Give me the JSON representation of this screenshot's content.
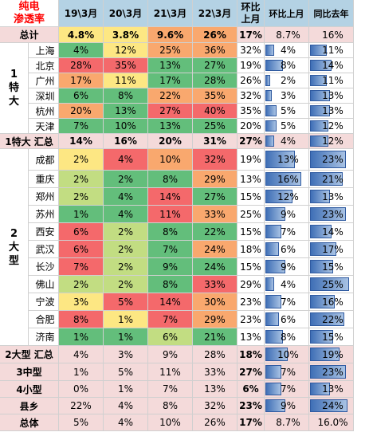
{
  "title_line1": "纯电",
  "title_line2": "渗透率",
  "headers": [
    "19\\3月",
    "20\\3月",
    "21\\3月",
    "22\\3月",
    "环比上月",
    "环比上月",
    "同比去年"
  ],
  "header_short": [
    "19\\3月",
    "20\\3月",
    "21\\3月",
    "22\\3月"
  ],
  "header_mom_top": "环比",
  "header_mom_bottom": "上月",
  "header_mom2": "环比上月",
  "header_yoy": "同比去年",
  "group_tier1": [
    "1",
    "特",
    "大"
  ],
  "group_tier2": [
    "2",
    "大",
    "型"
  ],
  "colors": {
    "red": "#f4696b",
    "orange": "#f9a86e",
    "yellow": "#fde783",
    "lightgreen": "#c2dd82",
    "green": "#63be7b"
  },
  "chart_data": {
    "type": "table",
    "columns": [
      "19\\3月",
      "20\\3月",
      "21\\3月",
      "22\\3月",
      "环比上月",
      "环比上月",
      "同比去年"
    ],
    "rows": [
      {
        "label": "总计",
        "values": [
          "4.8%",
          "3.8%",
          "9.6%",
          "26%",
          "17%",
          "8.7%",
          "16%"
        ],
        "bar_values": [
          null,
          null,
          null,
          null,
          null,
          8.7,
          16
        ]
      },
      {
        "label": "上海",
        "group": "1特大",
        "values": [
          "4%",
          "12%",
          "25%",
          "36%",
          "32%",
          "4%",
          "11%"
        ],
        "bar_values": [
          4,
          12,
          25,
          36,
          32,
          4,
          11
        ]
      },
      {
        "label": "北京",
        "group": "1特大",
        "values": [
          "28%",
          "35%",
          "13%",
          "27%",
          "19%",
          "8%",
          "14%"
        ],
        "bar_values": [
          28,
          35,
          13,
          27,
          19,
          8,
          14
        ]
      },
      {
        "label": "广州",
        "group": "1特大",
        "values": [
          "17%",
          "11%",
          "17%",
          "28%",
          "26%",
          "2%",
          "11%"
        ],
        "bar_values": [
          17,
          11,
          17,
          28,
          26,
          2,
          11
        ]
      },
      {
        "label": "深圳",
        "group": "1特大",
        "values": [
          "6%",
          "8%",
          "22%",
          "35%",
          "32%",
          "3%",
          "13%"
        ],
        "bar_values": [
          6,
          8,
          22,
          35,
          32,
          3,
          13
        ]
      },
      {
        "label": "杭州",
        "group": "1特大",
        "values": [
          "20%",
          "13%",
          "27%",
          "40%",
          "35%",
          "5%",
          "13%"
        ],
        "bar_values": [
          20,
          13,
          27,
          40,
          35,
          5,
          13
        ]
      },
      {
        "label": "天津",
        "group": "1特大",
        "values": [
          "7%",
          "10%",
          "13%",
          "25%",
          "20%",
          "5%",
          "12%"
        ],
        "bar_values": [
          7,
          10,
          13,
          25,
          20,
          5,
          12
        ]
      },
      {
        "label": "1特大 汇总",
        "values": [
          "14%",
          "16%",
          "20%",
          "31%",
          "27%",
          "4%",
          "12%"
        ],
        "bar_values": [
          14,
          16,
          20,
          31,
          27,
          4,
          12
        ]
      },
      {
        "label": "成都",
        "group": "2大型",
        "values": [
          "2%",
          "4%",
          "10%",
          "32%",
          "19%",
          "13%",
          "23%"
        ],
        "bar_values": [
          2,
          4,
          10,
          32,
          19,
          13,
          23
        ]
      },
      {
        "label": "重庆",
        "group": "2大型",
        "values": [
          "2%",
          "2%",
          "8%",
          "29%",
          "13%",
          "16%",
          "21%"
        ],
        "bar_values": [
          2,
          2,
          8,
          29,
          13,
          16,
          21
        ]
      },
      {
        "label": "郑州",
        "group": "2大型",
        "values": [
          "2%",
          "4%",
          "14%",
          "27%",
          "15%",
          "12%",
          "13%"
        ],
        "bar_values": [
          2,
          4,
          14,
          27,
          15,
          12,
          13
        ]
      },
      {
        "label": "苏州",
        "group": "2大型",
        "values": [
          "1%",
          "4%",
          "11%",
          "33%",
          "25%",
          "9%",
          "23%"
        ],
        "bar_values": [
          1,
          4,
          11,
          33,
          25,
          9,
          23
        ]
      },
      {
        "label": "西安",
        "group": "2大型",
        "values": [
          "6%",
          "2%",
          "8%",
          "22%",
          "15%",
          "7%",
          "14%"
        ],
        "bar_values": [
          6,
          2,
          8,
          22,
          15,
          7,
          14
        ]
      },
      {
        "label": "武汉",
        "group": "2大型",
        "values": [
          "6%",
          "2%",
          "7%",
          "24%",
          "18%",
          "6%",
          "17%"
        ],
        "bar_values": [
          6,
          2,
          7,
          24,
          18,
          6,
          17
        ]
      },
      {
        "label": "长沙",
        "group": "2大型",
        "values": [
          "7%",
          "2%",
          "9%",
          "24%",
          "15%",
          "9%",
          "15%"
        ],
        "bar_values": [
          7,
          2,
          9,
          24,
          15,
          9,
          15
        ]
      },
      {
        "label": "佛山",
        "group": "2大型",
        "values": [
          "2%",
          "2%",
          "8%",
          "33%",
          "29%",
          "4%",
          "25%"
        ],
        "bar_values": [
          2,
          2,
          8,
          33,
          29,
          4,
          25
        ]
      },
      {
        "label": "宁波",
        "group": "2大型",
        "values": [
          "3%",
          "5%",
          "14%",
          "30%",
          "23%",
          "7%",
          "16%"
        ],
        "bar_values": [
          3,
          5,
          14,
          30,
          23,
          7,
          16
        ]
      },
      {
        "label": "合肥",
        "group": "2大型",
        "values": [
          "8%",
          "1%",
          "7%",
          "29%",
          "23%",
          "6%",
          "22%"
        ],
        "bar_values": [
          8,
          1,
          7,
          29,
          23,
          6,
          22
        ]
      },
      {
        "label": "济南",
        "group": "2大型",
        "values": [
          "1%",
          "1%",
          "6%",
          "21%",
          "13%",
          "8%",
          "15%"
        ],
        "bar_values": [
          1,
          1,
          6,
          21,
          13,
          8,
          15
        ]
      },
      {
        "label": "2大型 汇总",
        "values": [
          "4%",
          "3%",
          "9%",
          "28%",
          "18%",
          "10%",
          "19%"
        ],
        "bar_values": [
          4,
          3,
          9,
          28,
          18,
          10,
          19
        ]
      },
      {
        "label": "3中型",
        "values": [
          "1%",
          "5%",
          "11%",
          "33%",
          "27%",
          "7%",
          "23%"
        ],
        "bar_values": [
          1,
          5,
          11,
          33,
          27,
          7,
          23
        ]
      },
      {
        "label": "4小型",
        "values": [
          "0%",
          "1%",
          "7%",
          "13%",
          "6%",
          "7%",
          "13%"
        ],
        "bar_values": [
          0,
          1,
          7,
          13,
          6,
          7,
          13
        ]
      },
      {
        "label": "县乡",
        "values": [
          "22%",
          "4%",
          "8%",
          "32%",
          "23%",
          "9%",
          "24%"
        ],
        "bar_values": [
          22,
          4,
          8,
          32,
          23,
          9,
          24
        ]
      },
      {
        "label": "总体",
        "values": [
          "5%",
          "4%",
          "10%",
          "26%",
          "17%",
          "8.7%",
          "16.0%"
        ],
        "bar_values": [
          5,
          4,
          10,
          26,
          17,
          8.7,
          16
        ]
      }
    ],
    "heat_colors": [
      [
        "yellow",
        "yellow",
        "orange",
        "orange"
      ],
      [
        "green",
        "yellow",
        "orange",
        "orange"
      ],
      [
        "red",
        "red",
        "green",
        "green"
      ],
      [
        "orange",
        "yellow",
        "green",
        "green"
      ],
      [
        "green",
        "green",
        "orange",
        "orange"
      ],
      [
        "orange",
        "green",
        "red",
        "red"
      ],
      [
        "green",
        "green",
        "green",
        "green"
      ],
      [
        null,
        null,
        null,
        null
      ],
      [
        "yellow",
        "red",
        "orange",
        "red"
      ],
      [
        "lightgreen",
        "green",
        "green",
        "orange"
      ],
      [
        "lightgreen",
        "green",
        "red",
        "green"
      ],
      [
        "green",
        "green",
        "red",
        "orange"
      ],
      [
        "red",
        "lightgreen",
        "green",
        "green"
      ],
      [
        "red",
        "lightgreen",
        "green",
        "orange"
      ],
      [
        "red",
        "lightgreen",
        "green",
        "green"
      ],
      [
        "lightgreen",
        "lightgreen",
        "green",
        "red"
      ],
      [
        "yellow",
        "red",
        "red",
        "orange"
      ],
      [
        "red",
        "yellow",
        "red",
        "orange"
      ],
      [
        "green",
        "green",
        "lightgreen",
        "green"
      ]
    ]
  }
}
